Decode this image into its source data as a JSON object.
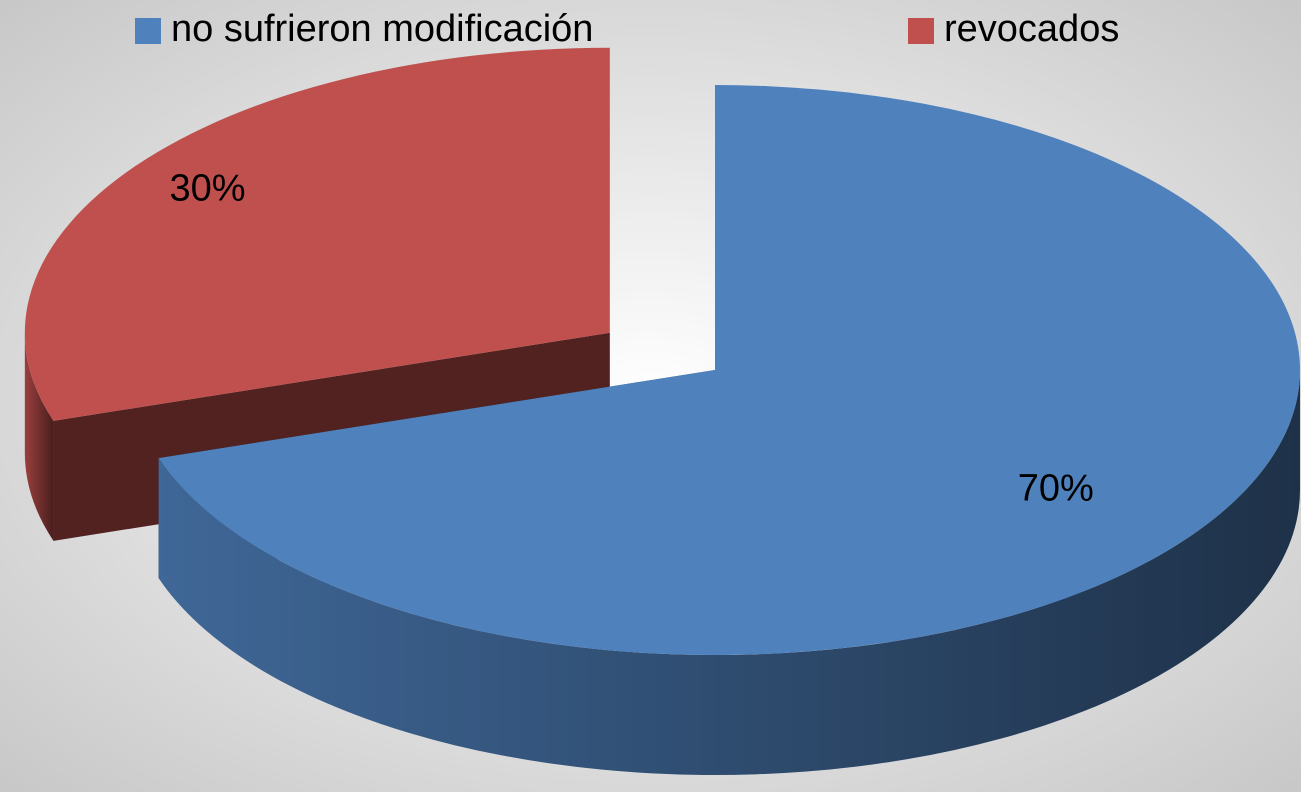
{
  "chart_data": {
    "type": "pie",
    "three_d": true,
    "exploded": true,
    "categories": [
      "no sufrieron modificación",
      "revocados"
    ],
    "values": [
      70,
      30
    ],
    "value_labels": [
      "70%",
      "30%"
    ],
    "colors": [
      "#4f81bd",
      "#c0504d"
    ],
    "legend": "top"
  }
}
